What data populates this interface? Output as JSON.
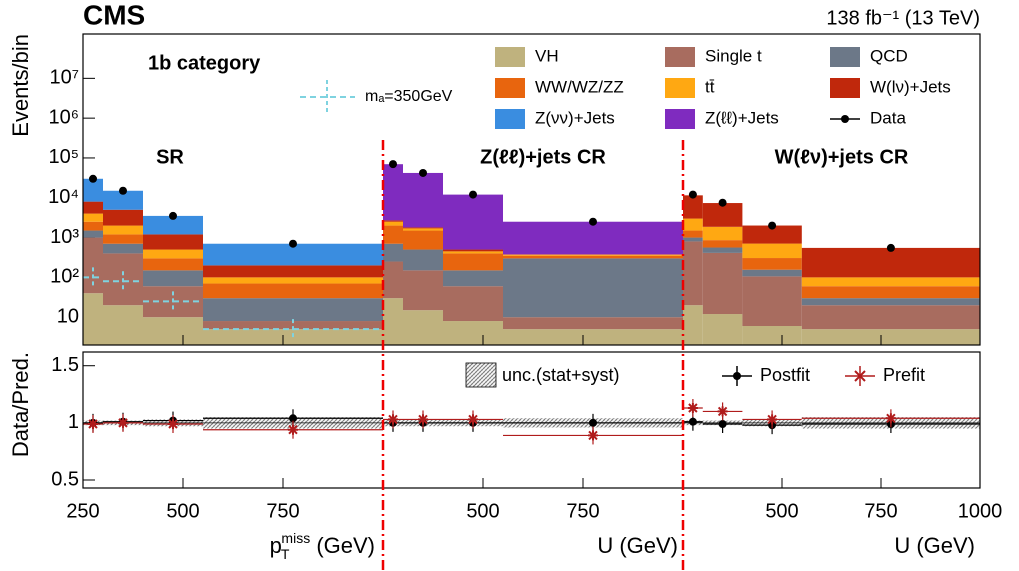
{
  "chart_data": [
    {
      "type": "stacked-histogram",
      "experiment": "CMS",
      "lumi": "138 fb⁻¹ (13 TeV)",
      "category": "1b category",
      "ylabel": "Events/bin",
      "log": true,
      "ylim": [
        2,
        130000000
      ],
      "yticks": [
        10,
        {
          "value": 100,
          "label": "10²"
        },
        {
          "value": 1000,
          "label": "10³"
        },
        {
          "value": 10000,
          "label": "10⁴"
        },
        {
          "value": 100000,
          "label": "10⁵"
        },
        {
          "value": 1000000,
          "label": "10⁶"
        },
        {
          "value": 10000000,
          "label": "10⁷"
        }
      ],
      "regions": [
        {
          "label": "SR",
          "bins": [
            250,
            300,
            400,
            550,
            1000
          ]
        },
        {
          "label": "Z(ℓℓ)+jets CR",
          "bins": [
            250,
            300,
            400,
            550,
            1000
          ]
        },
        {
          "label": "W(ℓν)+jets CR",
          "bins": [
            250,
            300,
            400,
            550,
            1000
          ]
        }
      ],
      "series": [
        {
          "name": "VH",
          "color": "#bfb27e",
          "values": [
            [
              40,
              20,
              10,
              5
            ],
            [
              30,
              15,
              8,
              5
            ],
            [
              20,
              12,
              6,
              5
            ]
          ]
        },
        {
          "name": "Single t",
          "color": "#a86c5f",
          "values": [
            [
              960,
              380,
              50,
              3
            ],
            [
              220,
              135,
              52,
              5
            ],
            [
              780,
              400,
              100,
              15
            ]
          ]
        },
        {
          "name": "QCD",
          "color": "#6c7888",
          "values": [
            [
              500,
              300,
              90,
              22
            ],
            [
              450,
              350,
              90,
              290
            ],
            [
              200,
              150,
              50,
              10
            ]
          ]
        },
        {
          "name": "WW/WZ/ZZ",
          "color": "#e8650e",
          "values": [
            [
              1000,
              500,
              150,
              40
            ],
            [
              1300,
              1000,
              250,
              50
            ],
            [
              500,
              300,
              150,
              30
            ]
          ]
        },
        {
          "name": "tt̄",
          "color": "#ffa812",
          "values": [
            [
              1500,
              800,
              200,
              30
            ],
            [
              500,
              200,
              50,
              20
            ],
            [
              1500,
              1000,
              400,
              40
            ]
          ]
        },
        {
          "name": "W(lν)+Jets",
          "color": "#c0280c",
          "values": [
            [
              4000,
              3000,
              700,
              100
            ],
            [
              200,
              100,
              50,
              10
            ],
            [
              8500,
              5500,
              1300,
              450
            ]
          ]
        },
        {
          "name": "Z(νν)+Jets",
          "color": "#3a8de0",
          "values": [
            [
              22000,
              10000,
              2300,
              500
            ],
            [
              0,
              0,
              0,
              0
            ],
            [
              0,
              0,
              0,
              0
            ]
          ]
        },
        {
          "name": "Z(ℓℓ)+Jets",
          "color": "#7f2bbf",
          "values": [
            [
              0,
              0,
              0,
              0
            ],
            [
              67000,
              40200,
              11500,
              2120
            ],
            [
              0,
              0,
              0,
              0
            ]
          ]
        }
      ],
      "data": {
        "name": "Data",
        "color": "#000000",
        "values": [
          [
            30000,
            15000,
            3500,
            700
          ],
          [
            70000,
            42000,
            12000,
            2500
          ],
          [
            12000,
            7500,
            2000,
            550
          ]
        ]
      },
      "signal": {
        "name": "mₐ=350GeV",
        "color": "#7fd3e0",
        "values": [
          100,
          80,
          25,
          5
        ]
      }
    },
    {
      "type": "ratio",
      "ylabel": "Data/Pred.",
      "ylim": [
        0.43,
        1.62
      ],
      "yticks": [
        0.5,
        1,
        1.5
      ],
      "regions": [
        {
          "xlim": [
            250,
            1000
          ],
          "xticks": [
            250,
            500,
            750
          ],
          "xlabel": {
            "main": "p",
            "sub": "T",
            "sup": "miss",
            "tail": " (GeV)"
          }
        },
        {
          "xlim": [
            250,
            1000
          ],
          "xticks": [
            500,
            750
          ],
          "xlabel": "U (GeV)"
        },
        {
          "xlim": [
            250,
            1000
          ],
          "xticks": [
            500,
            750,
            1000
          ],
          "xlabel": "U (GeV)"
        }
      ],
      "band": {
        "name": "unc.(stat+syst)",
        "values": [
          [
            0.02,
            0.02,
            0.03,
            0.05
          ],
          [
            0.03,
            0.03,
            0.03,
            0.04
          ],
          [
            0.02,
            0.02,
            0.03,
            0.05
          ]
        ]
      },
      "series": [
        {
          "name": "Postfit",
          "color": "#000000",
          "values": [
            [
              1.0,
              1.01,
              1.02,
              1.04
            ],
            [
              1.0,
              1.0,
              1.0,
              1.0
            ],
            [
              1.01,
              0.99,
              0.98,
              0.99
            ]
          ]
        },
        {
          "name": "Prefit",
          "color": "#b01c1c",
          "values": [
            [
              0.99,
              1.0,
              0.99,
              0.94
            ],
            [
              1.03,
              1.03,
              1.03,
              0.89
            ],
            [
              1.13,
              1.1,
              1.03,
              1.04
            ]
          ]
        }
      ]
    }
  ]
}
